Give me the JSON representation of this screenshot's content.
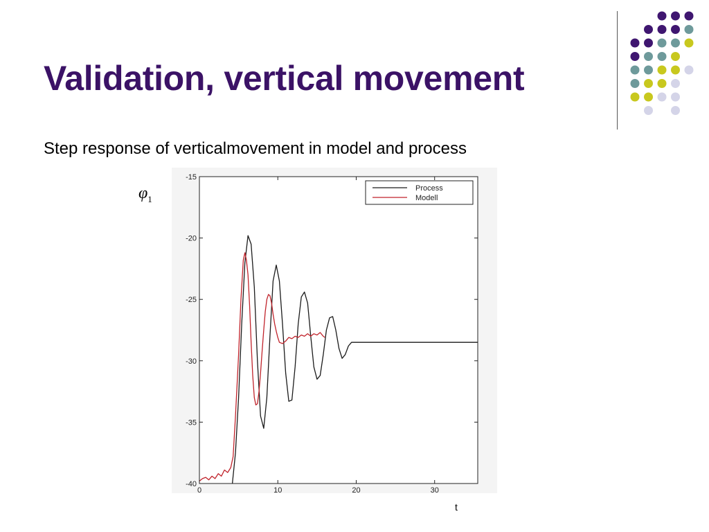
{
  "slide": {
    "title": "Validation, vertical movement",
    "subtitle": "Step response of verticalmovement in model and process"
  },
  "decoration": {
    "dot_colors": {
      "purple": "#3f1670",
      "teal": "#6e9a9b",
      "olive": "#c8c81e",
      "lavender": "#d4d4e8"
    },
    "dot_rows": [
      [
        "",
        "",
        "purple",
        "purple",
        "purple"
      ],
      [
        "",
        "purple",
        "purple",
        "purple",
        "teal"
      ],
      [
        "purple",
        "purple",
        "teal",
        "teal",
        "olive"
      ],
      [
        "purple",
        "teal",
        "teal",
        "olive",
        ""
      ],
      [
        "teal",
        "teal",
        "olive",
        "olive",
        "lavender"
      ],
      [
        "teal",
        "olive",
        "olive",
        "lavender",
        ""
      ],
      [
        "olive",
        "olive",
        "lavender",
        "lavender",
        ""
      ],
      [
        "",
        "lavender",
        "",
        "lavender",
        ""
      ]
    ]
  },
  "chart_data": {
    "type": "line",
    "title": "",
    "xlabel": "t",
    "ylabel": "φ",
    "ylabel_subscript": "1",
    "xlim": [
      0,
      35.5
    ],
    "ylim": [
      -40,
      -15
    ],
    "x_ticks": [
      0,
      10,
      20,
      30
    ],
    "x_tick_labels": [
      "0",
      "10",
      "20",
      "30"
    ],
    "y_ticks": [
      -15,
      -20,
      -25,
      -30,
      -35,
      -40
    ],
    "y_tick_labels": [
      "-15",
      "-20",
      "-25",
      "-30",
      "-35",
      "-40"
    ],
    "legend_position": "top-right",
    "series": [
      {
        "name": "Process",
        "color": "#1a1a1a",
        "x": [
          4.2,
          4.6,
          5.0,
          5.4,
          5.8,
          6.2,
          6.6,
          7.0,
          7.4,
          7.8,
          8.2,
          8.6,
          9.0,
          9.4,
          9.8,
          10.2,
          10.6,
          11.0,
          11.4,
          11.8,
          12.2,
          12.6,
          13.0,
          13.4,
          13.8,
          14.2,
          14.6,
          15.0,
          15.4,
          15.8,
          16.2,
          16.6,
          17.0,
          17.4,
          17.8,
          18.2,
          18.6,
          19.0,
          19.4,
          19.8,
          20.2,
          20.6,
          21.0,
          21.4,
          21.8,
          22.2,
          24.0,
          28.0,
          32.0,
          35.5
        ],
        "y": [
          -40.0,
          -37.5,
          -33.0,
          -27.0,
          -22.0,
          -19.8,
          -20.5,
          -24.0,
          -30.0,
          -34.5,
          -35.5,
          -33.0,
          -28.0,
          -23.5,
          -22.2,
          -23.5,
          -27.0,
          -31.0,
          -33.3,
          -33.2,
          -30.5,
          -27.0,
          -24.8,
          -24.4,
          -25.3,
          -28.0,
          -30.5,
          -31.5,
          -31.2,
          -29.5,
          -27.5,
          -26.5,
          -26.4,
          -27.5,
          -29.0,
          -29.8,
          -29.5,
          -28.8,
          -28.5,
          -28.5,
          -28.5,
          -28.5,
          -28.5,
          -28.5,
          -28.5,
          -28.5,
          -28.5,
          -28.5,
          -28.5,
          -28.5
        ]
      },
      {
        "name": "Modell",
        "color": "#c0222a",
        "x": [
          0,
          0.4,
          0.8,
          1.2,
          1.6,
          2.0,
          2.4,
          2.8,
          3.2,
          3.6,
          4.0,
          4.3,
          4.6,
          5.0,
          5.3,
          5.6,
          5.8,
          6.0,
          6.2,
          6.4,
          6.6,
          6.8,
          7.0,
          7.2,
          7.4,
          7.6,
          7.8,
          8.0,
          8.2,
          8.4,
          8.6,
          8.8,
          9.0,
          9.2,
          9.4,
          9.6,
          9.8,
          10.0,
          10.2,
          10.6,
          11.0,
          11.4,
          11.8,
          12.2,
          12.6,
          13.0,
          13.4,
          13.8,
          14.2,
          14.6,
          15.0,
          15.4,
          15.8,
          16.0
        ],
        "y": [
          -39.8,
          -39.6,
          -39.5,
          -39.7,
          -39.4,
          -39.6,
          -39.2,
          -39.4,
          -38.9,
          -39.1,
          -38.7,
          -37.8,
          -34.5,
          -29.5,
          -25.0,
          -21.8,
          -21.2,
          -21.8,
          -23.0,
          -25.5,
          -28.5,
          -31.2,
          -33.0,
          -33.6,
          -33.5,
          -32.5,
          -31.0,
          -29.2,
          -27.5,
          -26.0,
          -25.0,
          -24.6,
          -24.7,
          -25.3,
          -26.2,
          -27.0,
          -27.6,
          -28.1,
          -28.5,
          -28.6,
          -28.4,
          -28.1,
          -28.2,
          -28.0,
          -28.1,
          -27.9,
          -28.0,
          -27.8,
          -28.0,
          -27.8,
          -27.9,
          -27.7,
          -28.0,
          -28.1
        ]
      }
    ]
  }
}
